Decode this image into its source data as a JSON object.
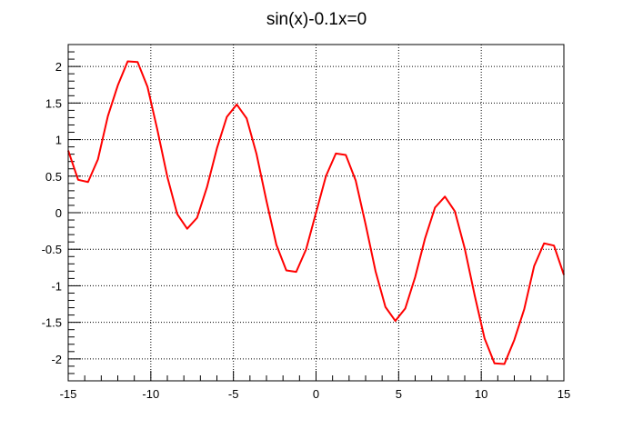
{
  "chart_data": {
    "type": "line",
    "title": "sin(x)-0.1x=0",
    "xlabel": "",
    "ylabel": "",
    "xlim": [
      -15,
      15
    ],
    "ylim": [
      -2.3,
      2.3
    ],
    "x_ticks": [
      -15,
      -10,
      -5,
      0,
      5,
      10,
      15
    ],
    "y_ticks": [
      -2,
      -1.5,
      -1,
      -0.5,
      0,
      0.5,
      1,
      1.5,
      2
    ],
    "grid": true,
    "line_color": "#ff0000",
    "series": [
      {
        "expression": "sin(x)-0.1x",
        "x": [
          -15,
          -14.4,
          -13.8,
          -13.2,
          -12.6,
          -12,
          -11.4,
          -10.8,
          -10.2,
          -9.6,
          -9,
          -8.4,
          -7.8,
          -7.2,
          -6.6,
          -6,
          -5.4,
          -4.8,
          -4.2,
          -3.6,
          -3,
          -2.4,
          -1.8,
          -1.2,
          -0.6,
          0,
          0.6,
          1.2,
          1.8,
          2.4,
          3,
          3.6,
          4.2,
          4.8,
          5.4,
          6,
          6.6,
          7.2,
          7.8,
          8.4,
          9,
          9.6,
          10.2,
          10.8,
          11.4,
          12,
          12.6,
          13.2,
          13.8,
          14.4,
          15
        ],
        "y": [
          0.85,
          0.45,
          0.42,
          0.73,
          1.32,
          1.74,
          2.07,
          2.06,
          1.72,
          1.13,
          0.49,
          -0.02,
          -0.22,
          -0.07,
          0.35,
          0.88,
          1.31,
          1.48,
          1.29,
          0.8,
          0.16,
          -0.44,
          -0.79,
          -0.81,
          -0.5,
          0.0,
          0.5,
          0.81,
          0.79,
          0.44,
          -0.16,
          -0.8,
          -1.29,
          -1.48,
          -1.31,
          -0.88,
          -0.35,
          0.07,
          0.22,
          0.02,
          -0.49,
          -1.13,
          -1.72,
          -2.06,
          -2.07,
          -1.74,
          -1.32,
          -0.73,
          -0.42,
          -0.45,
          -0.85
        ]
      }
    ]
  }
}
